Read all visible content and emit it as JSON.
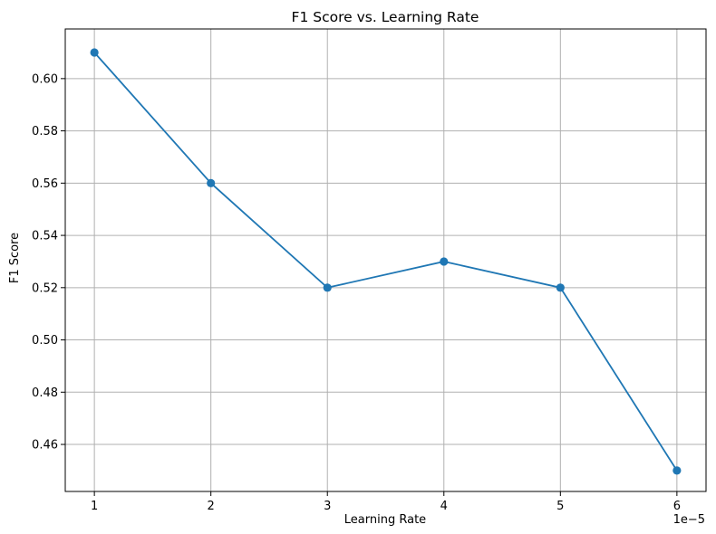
{
  "chart_data": {
    "type": "line",
    "title": "F1 Score vs. Learning Rate",
    "xlabel": "Learning Rate",
    "ylabel": "F1 Score",
    "x_scale_note": "1e−5",
    "x": [
      1,
      2,
      3,
      4,
      5,
      6
    ],
    "x_tick_labels": [
      "1",
      "2",
      "3",
      "4",
      "5",
      "6"
    ],
    "y_ticks": [
      0.46,
      0.48,
      0.5,
      0.52,
      0.54,
      0.56,
      0.58,
      0.6
    ],
    "y_tick_labels": [
      "0.46",
      "0.48",
      "0.50",
      "0.52",
      "0.54",
      "0.56",
      "0.58",
      "0.60"
    ],
    "xlim": [
      0.75,
      6.25
    ],
    "ylim": [
      0.442,
      0.619
    ],
    "grid": true,
    "legend": "none",
    "series": [
      {
        "values": [
          0.61,
          0.56,
          0.52,
          0.53,
          0.52,
          0.45
        ],
        "color": "#1f77b4",
        "marker": "circle"
      }
    ]
  }
}
